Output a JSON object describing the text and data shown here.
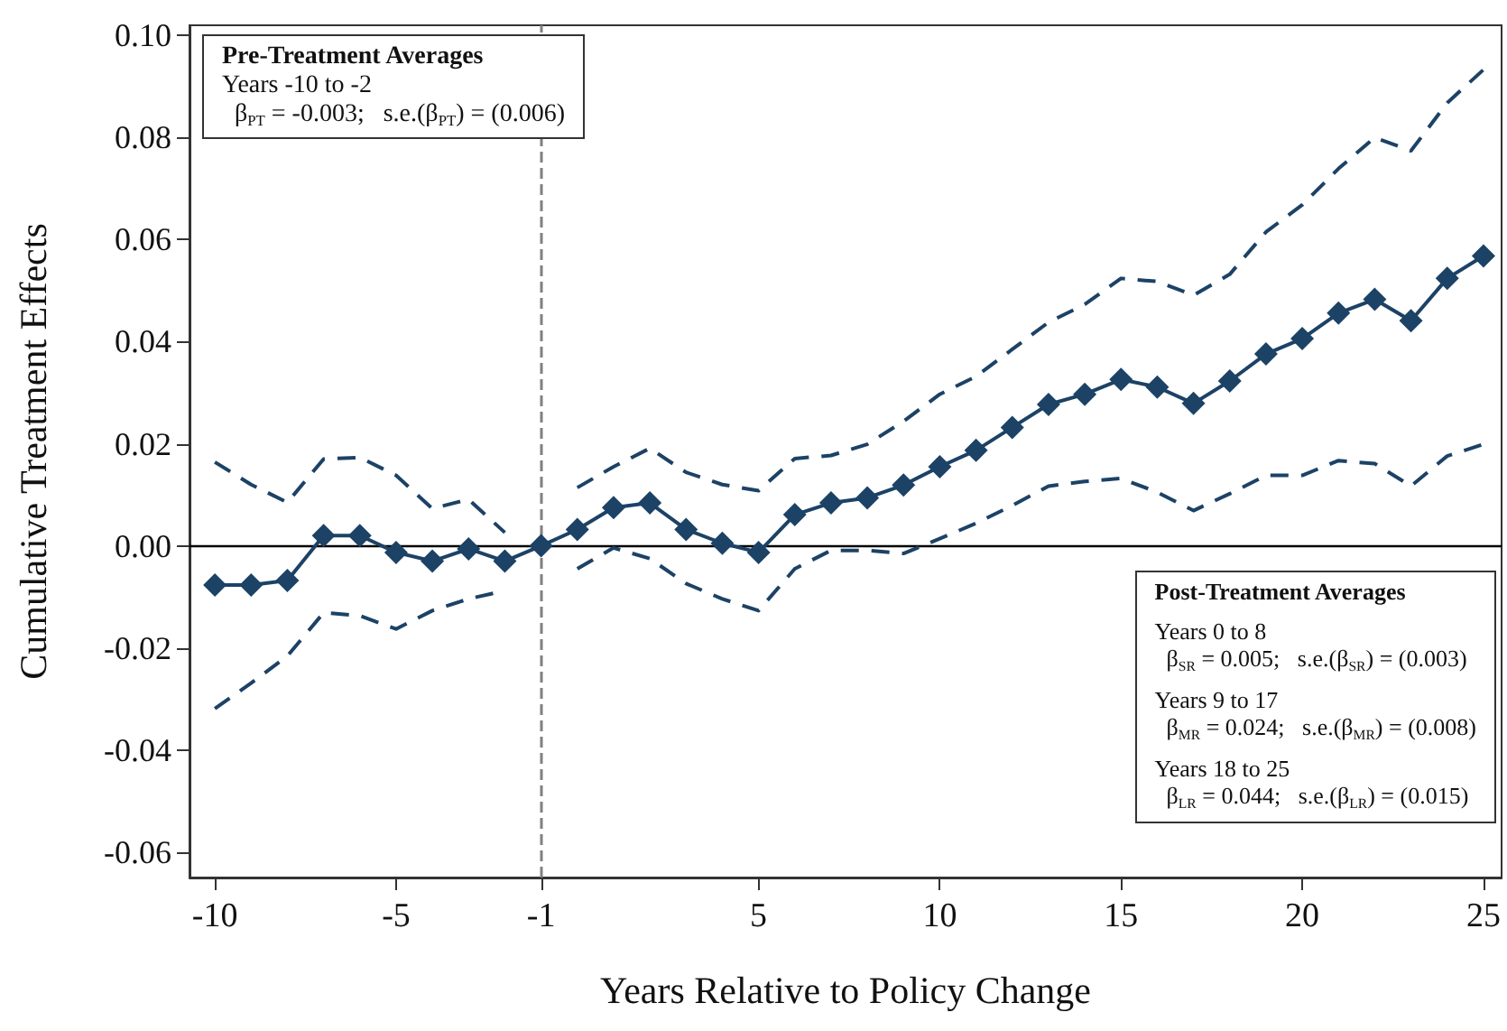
{
  "chart_data": {
    "type": "line",
    "xlabel": "Years Relative to Policy Change",
    "ylabel": "Cumulative Treatment Effects",
    "x": [
      -10,
      -9,
      -8,
      -7,
      -6,
      -5,
      -4,
      -3,
      -2,
      -1,
      0,
      1,
      2,
      3,
      4,
      5,
      6,
      7,
      8,
      9,
      10,
      11,
      12,
      13,
      14,
      15,
      16,
      17,
      18,
      19,
      20,
      21,
      22,
      23,
      24,
      25
    ],
    "series": [
      {
        "color": "#1c4266",
        "marker": "diamond",
        "line_style": "solid",
        "values": [
          -0.0077,
          -0.0077,
          -0.0068,
          0.002,
          0.002,
          -0.0013,
          -0.003,
          -0.0006,
          -0.003,
          0,
          0.0032,
          0.0075,
          0.0084,
          0.0032,
          0.0005,
          -0.0013,
          0.0061,
          0.0084,
          0.0094,
          0.0119,
          0.0155,
          0.0187,
          0.0232,
          0.0277,
          0.0297,
          0.0326,
          0.0311,
          0.0279,
          0.0323,
          0.0376,
          0.0406,
          0.0456,
          0.0483,
          0.0441,
          0.0524,
          0.0568
        ]
      },
      {
        "type": "line",
        "color": "#1c4266",
        "marker": "none",
        "line_style": "dashed",
        "values": [
          0.0164,
          0.012,
          0.0085,
          0.017,
          0.0173,
          0.0138,
          0.0073,
          0.0091,
          0.0026,
          null,
          0.0114,
          0.0155,
          0.0191,
          0.0144,
          0.012,
          0.0108,
          0.0171,
          0.0177,
          0.0199,
          0.0244,
          0.0297,
          0.0332,
          0.0385,
          0.0438,
          0.0473,
          0.0524,
          0.0518,
          0.0491,
          0.0532,
          0.0615,
          0.0668,
          0.0739,
          0.08,
          0.0774,
          0.0868,
          0.0933
        ]
      },
      {
        "type": "line",
        "color": "#1c4266",
        "marker": "none",
        "line_style": "dashed",
        "values": [
          -0.0319,
          -0.0269,
          -0.0216,
          -0.0131,
          -0.0137,
          -0.0163,
          -0.0127,
          -0.0104,
          -0.0088,
          null,
          -0.0045,
          -0.0004,
          -0.0025,
          -0.0074,
          -0.0104,
          -0.0127,
          -0.0045,
          -0.0009,
          -0.0009,
          -0.0015,
          0.0014,
          0.0044,
          0.0079,
          0.0117,
          0.0126,
          0.0132,
          0.0105,
          0.0069,
          0.0102,
          0.0138,
          0.0138,
          0.0167,
          0.0161,
          0.0117,
          0.0176,
          0.0199
        ]
      }
    ],
    "xlim": [
      -10.7,
      25.5
    ],
    "xticks": [
      -10,
      -5,
      -1,
      5,
      10,
      15,
      20,
      25
    ],
    "ylim": [
      -0.065,
      0.102
    ],
    "yticks": [
      {
        "value": -0.06,
        "label": "-0.06"
      },
      {
        "value": -0.04,
        "label": "-0.04"
      },
      {
        "value": -0.02,
        "label": "-0.02"
      },
      {
        "value": 0,
        "label": "0.00"
      },
      {
        "value": 0.02,
        "label": "0.02"
      },
      {
        "value": 0.04,
        "label": "0.04"
      },
      {
        "value": 0.06,
        "label": "0.06"
      },
      {
        "value": 0.08,
        "label": "0.08"
      },
      {
        "value": 0.1,
        "label": "0.10"
      }
    ],
    "ref_lines": [
      {
        "axis": "x",
        "value": -1,
        "color": "#808080",
        "line_style": "dashed"
      },
      {
        "axis": "y",
        "value": 0,
        "color": "#000000",
        "line_style": "solid"
      }
    ],
    "annotations": [
      "Pre-Treatment Averages\nYears -10 to -2\n  β$_{PT}$ = -0.003;   s.e.(β$_{PT}$) = (0.006)",
      "Post-Treatment Averages\n\nYears 0 to 8\n  β$_{SR}$ = 0.005;   s.e.(β$_{SR}$) = (0.003)\n\nYears 9 to 17\n  β$_{MR}$ = 0.024;   s.e.(β$_{MR}$) = (0.008)\n\nYears 18 to 25\n  β$_{LR}$ = 0.044;   s.e.(β$_{LR}$) = (0.015)"
    ],
    "grid": false
  }
}
